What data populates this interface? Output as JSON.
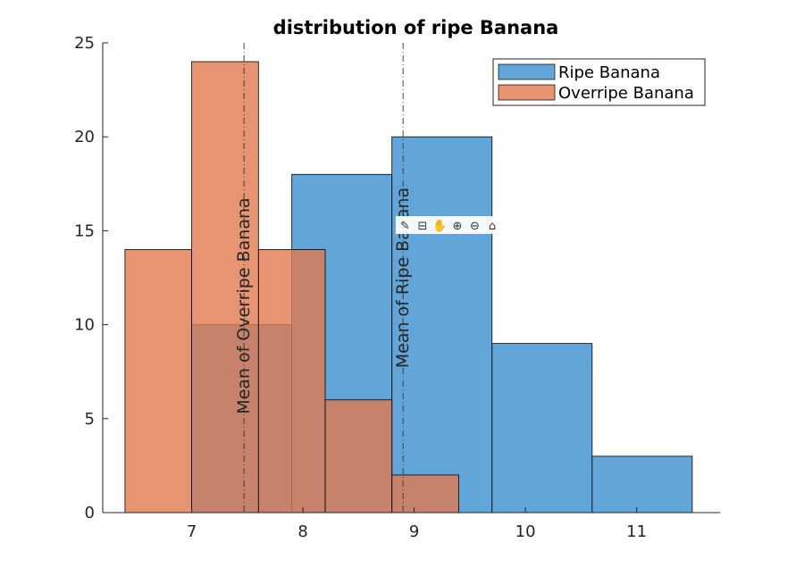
{
  "chart_data": {
    "type": "bar",
    "title": "distribution of ripe Banana",
    "xlabel": "",
    "ylabel": "",
    "xlim": [
      6.2,
      11.75
    ],
    "ylim": [
      0,
      25
    ],
    "xticks": [
      7,
      8,
      9,
      10,
      11
    ],
    "yticks": [
      0,
      5,
      10,
      15,
      20,
      25
    ],
    "legend_position": "top-right",
    "series": [
      {
        "name": "Ripe Banana",
        "color": "#0072BD",
        "bins": [
          {
            "start": 7.0,
            "end": 7.9,
            "count": 10
          },
          {
            "start": 7.9,
            "end": 8.8,
            "count": 18
          },
          {
            "start": 8.8,
            "end": 9.7,
            "count": 20
          },
          {
            "start": 9.7,
            "end": 10.6,
            "count": 9
          },
          {
            "start": 10.6,
            "end": 11.5,
            "count": 3
          }
        ],
        "mean": 8.9
      },
      {
        "name": "Overripe Banana",
        "color": "#D95319",
        "bins": [
          {
            "start": 6.4,
            "end": 7.0,
            "count": 14
          },
          {
            "start": 7.0,
            "end": 7.6,
            "count": 24
          },
          {
            "start": 7.6,
            "end": 8.2,
            "count": 14
          },
          {
            "start": 8.2,
            "end": 8.8,
            "count": 6
          },
          {
            "start": 8.8,
            "end": 9.4,
            "count": 2
          }
        ],
        "mean": 7.47
      }
    ],
    "annotations": [
      {
        "text": "Mean of Overripe Banana",
        "x": 7.47,
        "y": 11
      },
      {
        "text": "Mean of Ripe Banana",
        "x": 8.9,
        "y": 12.5
      }
    ]
  },
  "toolbar": {
    "icons": [
      "brush-icon",
      "datatip-icon",
      "pan-icon",
      "zoom-in-icon",
      "zoom-out-icon",
      "home-icon"
    ]
  }
}
